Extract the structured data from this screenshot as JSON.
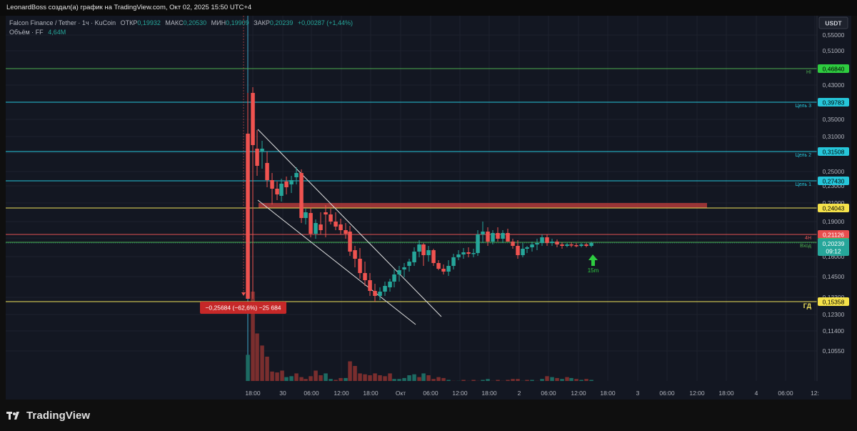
{
  "header": {
    "title": "LeonardBoss создал(а) график на TradingView.com, Окт 02, 2025 15:50 UTC+4"
  },
  "legend": {
    "symbol": "Falcon Finance / Tether · 1ч · KuCoin",
    "open_label": "ОТКР",
    "open": "0,19932",
    "high_label": "МАКС",
    "high": "0,20530",
    "low_label": "МИН",
    "low": "0,19909",
    "close_label": "ЗАКР",
    "close": "0,20239",
    "change": "+0,00287 (+1,44%)",
    "volume_label": "Объём · FF",
    "volume_value": "4,64M"
  },
  "price_axis": {
    "currency": "USDT",
    "ticks": [
      "0,55000",
      "0,51000",
      "0,47000",
      "0,43000",
      "0,39000",
      "0,35000",
      "0,31000",
      "0,28000",
      "0,25000",
      "0,23000",
      "0,21000",
      "0,19000",
      "0,17500",
      "0,16000",
      "0,14500",
      "0,13300",
      "0,12300",
      "0,11400",
      "0,10550"
    ]
  },
  "levels": [
    {
      "name": "HI",
      "price": "0,46840",
      "color": "#4caf50",
      "label_bg": "#2ecc40",
      "text_color": "#000000"
    },
    {
      "name": "Цель 3",
      "price": "0,39783",
      "color": "#26c6da",
      "label_bg": "#26c6da",
      "text_color": "#000000"
    },
    {
      "name": "Цель 2",
      "price": "0,31508",
      "color": "#26c6da",
      "label_bg": "#26c6da",
      "text_color": "#000000"
    },
    {
      "name": "Цель 1",
      "price": "0,27430",
      "color": "#26c6da",
      "label_bg": "#26c6da",
      "text_color": "#000000"
    },
    {
      "name": "",
      "price": "0,24043",
      "color": "#f2e35a",
      "label_bg": "#f5e24a",
      "text_color": "#000000"
    },
    {
      "name": "4H",
      "price": "0,21126",
      "color": "#e05252",
      "label_bg": "#e84e4e",
      "text_color": "#ffffff"
    },
    {
      "name": "Вход",
      "price": "0,20438",
      "color": "#4caf50",
      "label_bg": "#3fbf5f",
      "text_color": "#000000"
    },
    {
      "name": "ГД",
      "price": "0,15358",
      "color": "#f2e35a",
      "label_bg": "#f5e24a",
      "text_color": "#000000"
    }
  ],
  "current_price": {
    "value": "0,20239",
    "countdown": "09:12",
    "bg": "#26a69a"
  },
  "measure_label": "−0,25684 (−62,6%) −25 684",
  "arrow_label": "15m",
  "time_axis": [
    "18:00",
    "30",
    "06:00",
    "12:00",
    "18:00",
    "Окт",
    "06:00",
    "12:00",
    "18:00",
    "2",
    "06:00",
    "12:00",
    "18:00",
    "3",
    "06:00",
    "12:00",
    "18:00",
    "4",
    "06:00",
    "12:"
  ],
  "colors": {
    "up": "#26a69a",
    "down": "#ef5350",
    "background": "#131722",
    "grid": "#1e222d"
  },
  "footer": {
    "brand": "TradingView"
  }
}
